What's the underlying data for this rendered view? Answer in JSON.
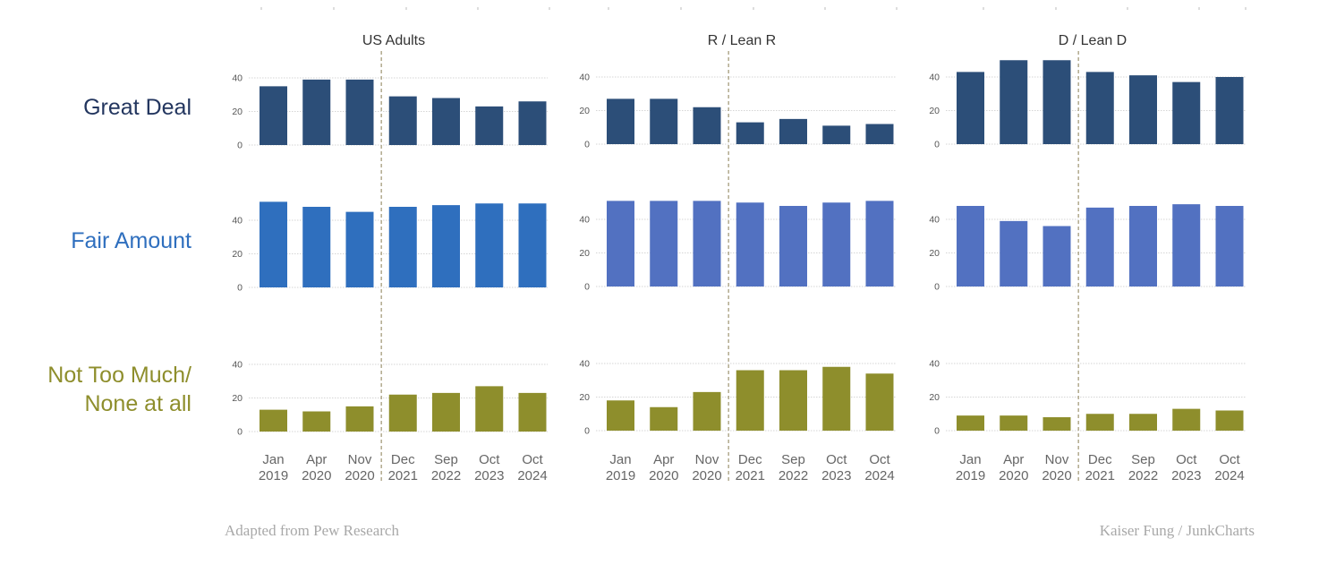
{
  "colors": {
    "great_deal": "#2c4e78",
    "fair_us": "#2f6fbe",
    "fair_party": "#5271c1",
    "not_much": "#8e8e2c",
    "label_great": "#23365f",
    "label_fair": "#2f6fbe",
    "label_not": "#8e8e2c",
    "divider": "#8a7f55",
    "grid": "#c8c8c8",
    "tick_text": "#555555",
    "axis_text": "#666666"
  },
  "row_labels": {
    "great_deal": "Great Deal",
    "fair_amount": "Fair Amount",
    "not_much_line1": "Not Too Much/",
    "not_much_line2": "None at all"
  },
  "footer": {
    "left": "Adapted from Pew Research",
    "right": "Kaiser Fung / JunkCharts"
  },
  "chart_data": {
    "type": "bar",
    "categories": [
      "Jan 2019",
      "Apr 2020",
      "Nov 2020",
      "Dec 2021",
      "Sep 2022",
      "Oct 2023",
      "Oct 2024"
    ],
    "category_lines": [
      [
        "Jan",
        "2019"
      ],
      [
        "Apr",
        "2020"
      ],
      [
        "Nov",
        "2020"
      ],
      [
        "Dec",
        "2021"
      ],
      [
        "Sep",
        "2022"
      ],
      [
        "Oct",
        "2023"
      ],
      [
        "Oct",
        "2024"
      ]
    ],
    "yticks": [
      0,
      20,
      40
    ],
    "ylim": [
      0,
      52
    ],
    "divider_after_index": 2,
    "panels": [
      {
        "title": "US Adults",
        "great_deal": [
          35,
          39,
          39,
          29,
          28,
          23,
          26
        ],
        "fair_amount": [
          51,
          48,
          45,
          48,
          49,
          50,
          50
        ],
        "not_much": [
          13,
          12,
          15,
          22,
          23,
          27,
          23
        ]
      },
      {
        "title": "R / Lean R",
        "great_deal": [
          27,
          27,
          22,
          13,
          15,
          11,
          12
        ],
        "fair_amount": [
          51,
          51,
          51,
          50,
          48,
          50,
          51
        ],
        "not_much": [
          18,
          14,
          23,
          36,
          36,
          38,
          34
        ]
      },
      {
        "title": "D / Lean D",
        "great_deal": [
          43,
          50,
          50,
          43,
          41,
          37,
          40
        ],
        "fair_amount": [
          48,
          39,
          36,
          47,
          48,
          49,
          48
        ],
        "not_much": [
          9,
          9,
          8,
          10,
          10,
          13,
          12
        ]
      }
    ]
  }
}
